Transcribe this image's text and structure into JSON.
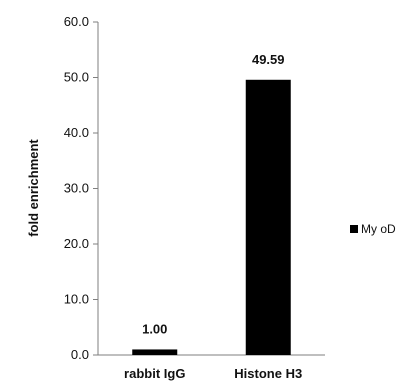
{
  "chart_data": {
    "type": "bar",
    "categories": [
      "rabbit IgG",
      "Histone H3"
    ],
    "series": [
      {
        "name": "MyoD",
        "values": [
          1.0,
          49.59
        ]
      }
    ],
    "data_labels": [
      "1.00",
      "49.59"
    ],
    "ylabel": "fold enrichment",
    "xlabel": "",
    "ylim": [
      0,
      60
    ],
    "y_ticks": [
      "0.0",
      "10.0",
      "20.0",
      "30.0",
      "40.0",
      "50.0",
      "60.0"
    ],
    "legend": {
      "position": "right",
      "label": "My oD"
    },
    "grid": false,
    "bar_color": "#000000"
  }
}
